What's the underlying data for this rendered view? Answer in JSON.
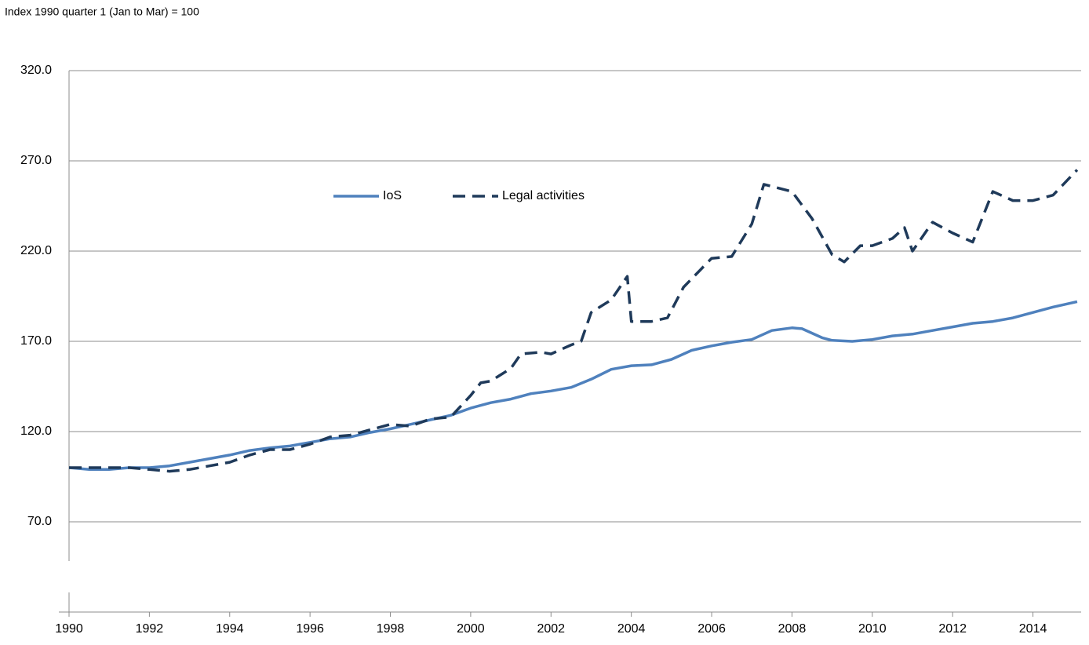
{
  "chart_data": {
    "type": "line",
    "subtitle": "Index 1990 quarter 1 (Jan to Mar)  = 100",
    "xlim": [
      1990,
      2015.2
    ],
    "xticks": [
      1990,
      1992,
      1994,
      1996,
      1998,
      2000,
      2002,
      2004,
      2006,
      2008,
      2010,
      2012,
      2014
    ],
    "ylim": [
      20,
      320
    ],
    "yticks": [
      {
        "value": 70,
        "label": "70.0"
      },
      {
        "value": 120,
        "label": "120.0"
      },
      {
        "value": 170,
        "label": "170.0"
      },
      {
        "value": 220,
        "label": "220.0"
      },
      {
        "value": 270,
        "label": "270.0"
      },
      {
        "value": 320,
        "label": "320.0"
      }
    ],
    "grid": true,
    "legend": "top",
    "series": [
      {
        "name": "IoS",
        "color": "#4f81bd",
        "dash": false,
        "x": [
          1990,
          1990.5,
          1991,
          1991.5,
          1992,
          1992.5,
          1993,
          1993.5,
          1994,
          1994.5,
          1995,
          1995.5,
          1996,
          1996.5,
          1997,
          1997.5,
          1998,
          1998.5,
          1999,
          1999.5,
          2000,
          2000.5,
          2001,
          2001.5,
          2002,
          2002.5,
          2003,
          2003.5,
          2004,
          2004.5,
          2005,
          2005.5,
          2006,
          2006.5,
          2007,
          2007.5,
          2008,
          2008.25,
          2008.75,
          2009,
          2009.5,
          2010,
          2010.5,
          2011,
          2011.5,
          2012,
          2012.5,
          2013,
          2013.5,
          2014,
          2014.5,
          2015.1
        ],
        "values": [
          100,
          99,
          99,
          100,
          100,
          101,
          103,
          105,
          107,
          109.5,
          111,
          112,
          114,
          116,
          117,
          119.5,
          121.5,
          124,
          126.5,
          129,
          133,
          136,
          138,
          141,
          142.5,
          144.5,
          149,
          154.5,
          156.5,
          157,
          160,
          165,
          167.5,
          169.5,
          171,
          176,
          177.5,
          177,
          172,
          170.5,
          170,
          171,
          173,
          174,
          176,
          178,
          180,
          181,
          183,
          186,
          189,
          192
        ]
      },
      {
        "name": "Legal activities",
        "color": "#1f3a5a",
        "dash": true,
        "x": [
          1990,
          1990.5,
          1991,
          1991.5,
          1992,
          1992.5,
          1993,
          1993.5,
          1994,
          1994.5,
          1995,
          1995.5,
          1996,
          1996.5,
          1997,
          1997.5,
          1998,
          1998.5,
          1999,
          1999.5,
          2000,
          2000.25,
          2000.5,
          2001,
          2001.25,
          2001.75,
          2002,
          2002.5,
          2002.75,
          2003,
          2003.5,
          2003.9,
          2004,
          2004.5,
          2004.9,
          2005.3,
          2006,
          2006.5,
          2007,
          2007.3,
          2008,
          2008.5,
          2009,
          2009.3,
          2009.7,
          2010,
          2010.5,
          2010.8,
          2011,
          2011.5,
          2012,
          2012.5,
          2013,
          2013.5,
          2014,
          2014.5,
          2015.1
        ],
        "values": [
          100,
          100,
          100,
          100,
          99,
          98,
          99,
          101,
          103,
          107,
          110,
          110,
          113,
          117,
          118,
          121,
          124,
          123,
          127,
          128,
          140,
          147,
          148,
          155,
          163,
          164,
          163,
          168,
          170,
          186,
          193,
          206,
          181,
          181,
          183,
          200,
          216,
          217,
          235,
          257,
          253,
          238,
          218,
          214,
          223,
          223,
          227,
          233,
          220,
          236,
          230,
          225,
          253,
          248,
          248,
          251,
          265
        ]
      }
    ]
  }
}
